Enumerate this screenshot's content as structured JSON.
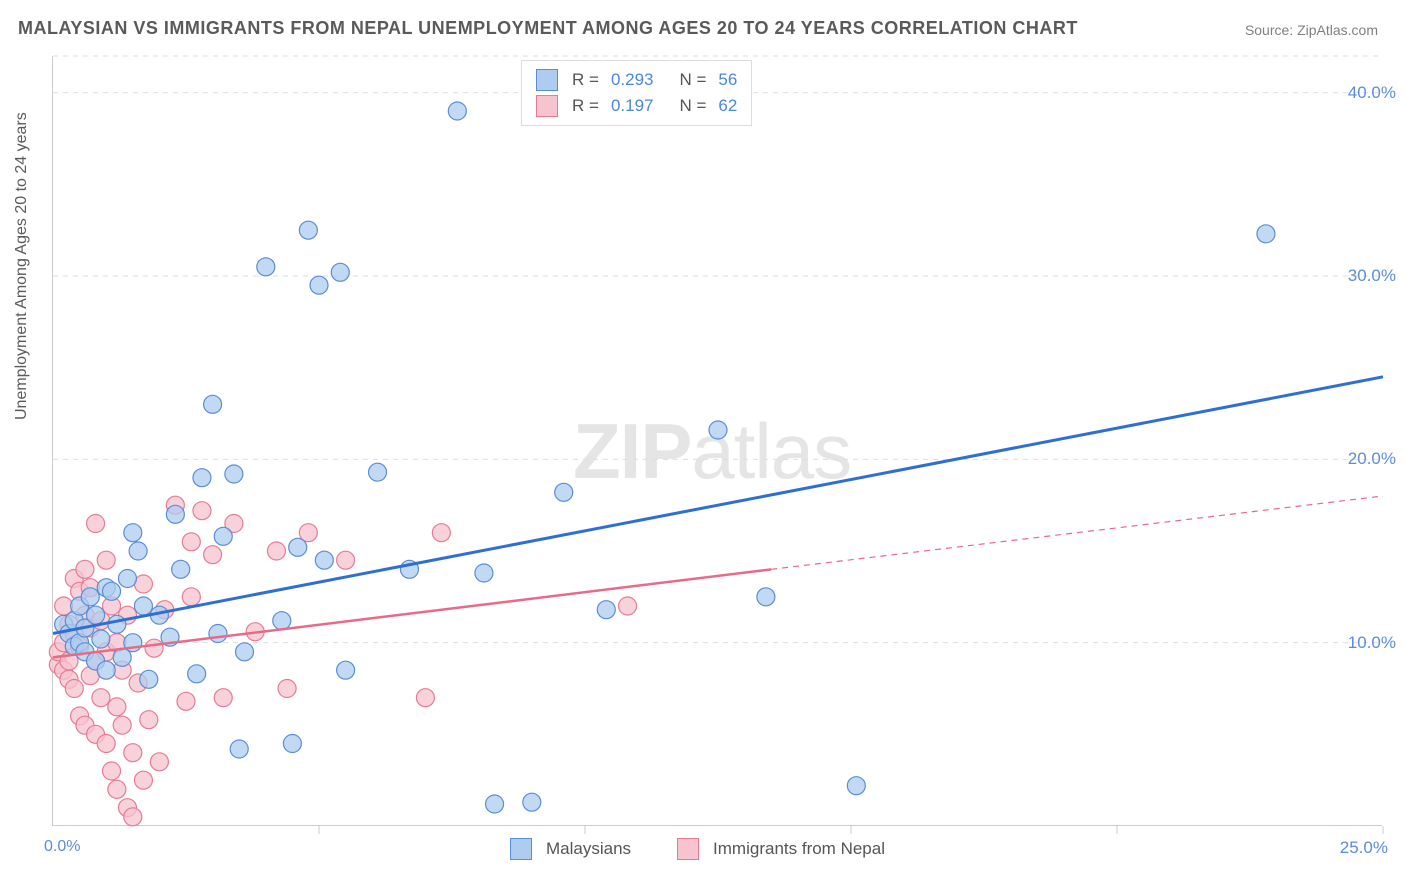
{
  "title": "MALAYSIAN VS IMMIGRANTS FROM NEPAL UNEMPLOYMENT AMONG AGES 20 TO 24 YEARS CORRELATION CHART",
  "source_prefix": "Source: ",
  "source_name": "ZipAtlas.com",
  "ylabel": "Unemployment Among Ages 20 to 24 years",
  "watermark_a": "ZIP",
  "watermark_b": "atlas",
  "chart": {
    "type": "scatter",
    "xlim": [
      0,
      25
    ],
    "ylim": [
      0,
      42
    ],
    "x_origin_label": "0.0%",
    "x_end_label": "25.0%",
    "y_ticks": [
      10,
      20,
      30,
      40
    ],
    "y_tick_labels": [
      "10.0%",
      "20.0%",
      "30.0%",
      "40.0%"
    ],
    "x_ticks": [
      5,
      10,
      15,
      20,
      25
    ],
    "grid_color": "#dddddd",
    "background_color": "#ffffff",
    "marker_radius": 9,
    "series": [
      {
        "name": "Malaysians",
        "color_fill": "#aeccf0",
        "color_stroke": "#5b8dd6",
        "trend_color": "#2e6fd1",
        "R": "0.293",
        "N": "56",
        "trend_line": {
          "x1": 0,
          "y1": 10.5,
          "x2": 25,
          "y2": 24.5
        },
        "points": [
          [
            0.2,
            11.0
          ],
          [
            0.3,
            10.5
          ],
          [
            0.4,
            9.8
          ],
          [
            0.4,
            11.2
          ],
          [
            0.5,
            12.0
          ],
          [
            0.5,
            10.0
          ],
          [
            0.6,
            10.8
          ],
          [
            0.6,
            9.5
          ],
          [
            0.7,
            12.5
          ],
          [
            0.8,
            11.5
          ],
          [
            0.8,
            9.0
          ],
          [
            0.9,
            10.2
          ],
          [
            1.0,
            13.0
          ],
          [
            1.0,
            8.5
          ],
          [
            1.1,
            12.8
          ],
          [
            1.2,
            11.0
          ],
          [
            1.3,
            9.2
          ],
          [
            1.4,
            13.5
          ],
          [
            1.5,
            16.0
          ],
          [
            1.5,
            10.0
          ],
          [
            1.6,
            15.0
          ],
          [
            1.7,
            12.0
          ],
          [
            1.8,
            8.0
          ],
          [
            2.0,
            11.5
          ],
          [
            2.2,
            10.3
          ],
          [
            2.3,
            17.0
          ],
          [
            2.4,
            14.0
          ],
          [
            2.7,
            8.3
          ],
          [
            2.8,
            19.0
          ],
          [
            3.0,
            23.0
          ],
          [
            3.1,
            10.5
          ],
          [
            3.2,
            15.8
          ],
          [
            3.4,
            19.2
          ],
          [
            3.5,
            4.2
          ],
          [
            3.6,
            9.5
          ],
          [
            4.0,
            30.5
          ],
          [
            4.3,
            11.2
          ],
          [
            4.5,
            4.5
          ],
          [
            4.6,
            15.2
          ],
          [
            4.8,
            32.5
          ],
          [
            5.0,
            29.5
          ],
          [
            5.1,
            14.5
          ],
          [
            5.4,
            30.2
          ],
          [
            5.5,
            8.5
          ],
          [
            6.1,
            19.3
          ],
          [
            6.7,
            14.0
          ],
          [
            7.6,
            39.0
          ],
          [
            8.1,
            13.8
          ],
          [
            8.3,
            1.2
          ],
          [
            9.0,
            1.3
          ],
          [
            9.6,
            18.2
          ],
          [
            10.4,
            11.8
          ],
          [
            12.5,
            21.6
          ],
          [
            13.4,
            12.5
          ],
          [
            15.1,
            2.2
          ],
          [
            22.8,
            32.3
          ]
        ]
      },
      {
        "name": "Immigrants from Nepal",
        "color_fill": "#f6c3cf",
        "color_stroke": "#e97a94",
        "trend_color": "#e86a87",
        "R": "0.197",
        "N": "62",
        "trend_solid": {
          "x1": 0,
          "y1": 9.2,
          "x2": 13.5,
          "y2": 14.0
        },
        "trend_dashed": {
          "x1": 13.5,
          "y1": 14.0,
          "x2": 25,
          "y2": 18.0
        },
        "points": [
          [
            0.1,
            8.8
          ],
          [
            0.1,
            9.5
          ],
          [
            0.2,
            8.5
          ],
          [
            0.2,
            10.0
          ],
          [
            0.2,
            12.0
          ],
          [
            0.3,
            9.0
          ],
          [
            0.3,
            11.0
          ],
          [
            0.3,
            8.0
          ],
          [
            0.4,
            13.5
          ],
          [
            0.4,
            7.5
          ],
          [
            0.4,
            10.5
          ],
          [
            0.5,
            12.8
          ],
          [
            0.5,
            6.0
          ],
          [
            0.5,
            9.8
          ],
          [
            0.6,
            11.5
          ],
          [
            0.6,
            14.0
          ],
          [
            0.6,
            5.5
          ],
          [
            0.7,
            8.2
          ],
          [
            0.7,
            10.8
          ],
          [
            0.7,
            13.0
          ],
          [
            0.8,
            5.0
          ],
          [
            0.8,
            9.0
          ],
          [
            0.8,
            16.5
          ],
          [
            0.9,
            7.0
          ],
          [
            0.9,
            11.2
          ],
          [
            1.0,
            4.5
          ],
          [
            1.0,
            14.5
          ],
          [
            1.0,
            9.5
          ],
          [
            1.1,
            3.0
          ],
          [
            1.1,
            12.0
          ],
          [
            1.2,
            6.5
          ],
          [
            1.2,
            2.0
          ],
          [
            1.2,
            10.0
          ],
          [
            1.3,
            5.5
          ],
          [
            1.3,
            8.5
          ],
          [
            1.4,
            1.0
          ],
          [
            1.4,
            11.5
          ],
          [
            1.5,
            4.0
          ],
          [
            1.5,
            0.5
          ],
          [
            1.6,
            7.8
          ],
          [
            1.7,
            2.5
          ],
          [
            1.7,
            13.2
          ],
          [
            1.8,
            5.8
          ],
          [
            1.9,
            9.7
          ],
          [
            2.0,
            3.5
          ],
          [
            2.1,
            11.8
          ],
          [
            2.3,
            17.5
          ],
          [
            2.5,
            6.8
          ],
          [
            2.6,
            15.5
          ],
          [
            2.6,
            12.5
          ],
          [
            2.8,
            17.2
          ],
          [
            3.0,
            14.8
          ],
          [
            3.2,
            7.0
          ],
          [
            3.4,
            16.5
          ],
          [
            3.8,
            10.6
          ],
          [
            4.2,
            15.0
          ],
          [
            4.4,
            7.5
          ],
          [
            4.8,
            16.0
          ],
          [
            5.5,
            14.5
          ],
          [
            7.0,
            7.0
          ],
          [
            7.3,
            16.0
          ],
          [
            10.8,
            12.0
          ]
        ]
      }
    ]
  },
  "legend_top": {
    "rows": [
      {
        "swatch": "blue",
        "r_label": "R =",
        "r_val": "0.293",
        "n_label": "N =",
        "n_val": "56"
      },
      {
        "swatch": "pink",
        "r_label": "R =",
        "r_val": "0.197",
        "n_label": "N =",
        "n_val": "62"
      }
    ]
  },
  "legend_bottom": {
    "items": [
      {
        "swatch": "blue",
        "label": "Malaysians"
      },
      {
        "swatch": "pink",
        "label": "Immigrants from Nepal"
      }
    ]
  }
}
